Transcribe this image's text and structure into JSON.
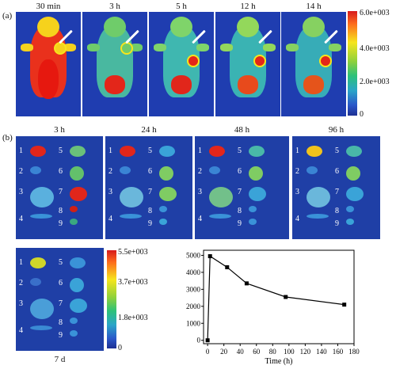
{
  "section_a": {
    "label": "(a)",
    "timepoints": [
      "30 min",
      "3 h",
      "5 h",
      "12 h",
      "14 h"
    ],
    "colorbar_ticks": [
      "6.0e+003",
      "4.0e+003",
      "2.0e+003",
      "0"
    ]
  },
  "section_b": {
    "label": "(b)",
    "timepoints": [
      "3 h",
      "24 h",
      "48 h",
      "96 h"
    ],
    "last_timepoint": "7 d",
    "organ_numbers": [
      "1",
      "2",
      "3",
      "4",
      "5",
      "6",
      "7",
      "8",
      "9"
    ],
    "colorbar_ticks": [
      "5.5e+003",
      "3.7e+003",
      "1.8e+003",
      "0"
    ]
  },
  "chart_data": {
    "type": "line",
    "title": "",
    "xlabel": "Time (h)",
    "ylabel": "",
    "x_ticks": [
      "0",
      "20",
      "40",
      "60",
      "80",
      "100",
      "120",
      "140",
      "160",
      "180"
    ],
    "y_ticks": [
      "0",
      "1000",
      "2000",
      "3000",
      "4000",
      "5000"
    ],
    "xlim": [
      -5,
      180
    ],
    "ylim": [
      -200,
      5300
    ],
    "x": [
      0,
      3,
      24,
      48,
      96,
      168
    ],
    "y": [
      0,
      4950,
      4300,
      3350,
      2550,
      2100
    ]
  }
}
